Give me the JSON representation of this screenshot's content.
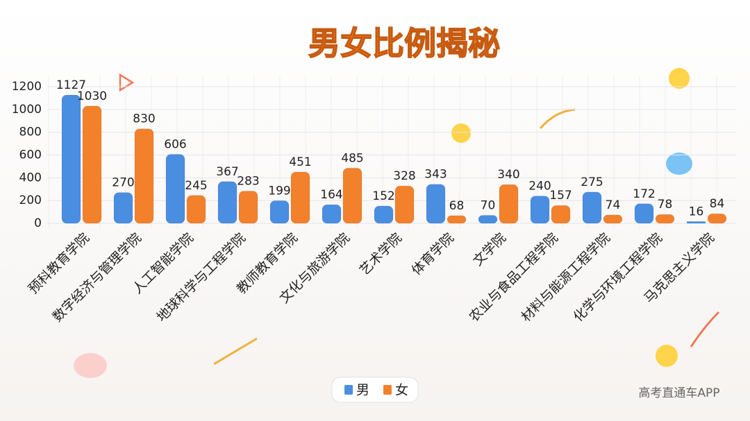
{
  "chart_data": {
    "type": "bar",
    "title": "男女比例揭秘",
    "categories": [
      "预科教育学院",
      "数字经济与管理学院",
      "人工智能学院",
      "地球科学与工程学院",
      "教师教育学院",
      "文化与旅游学院",
      "艺术学院",
      "体育学院",
      "文学院",
      "农业与食品工程学院",
      "材料与能源工程学院",
      "化学与环境工程学院",
      "马克思主义学院"
    ],
    "series": [
      {
        "name": "男",
        "color": "#4a8ee2",
        "values": [
          1127,
          270,
          606,
          367,
          199,
          164,
          152,
          343,
          70,
          240,
          275,
          172,
          16
        ]
      },
      {
        "name": "女",
        "color": "#f3812c",
        "values": [
          1030,
          830,
          245,
          283,
          451,
          485,
          328,
          68,
          340,
          157,
          74,
          78,
          84
        ]
      }
    ],
    "ylim": [
      0,
      1200
    ],
    "yticks": [
      0,
      200,
      400,
      600,
      800,
      1000,
      1200
    ],
    "grid": true,
    "legend": "bottom",
    "source": "高考直通车APP"
  }
}
